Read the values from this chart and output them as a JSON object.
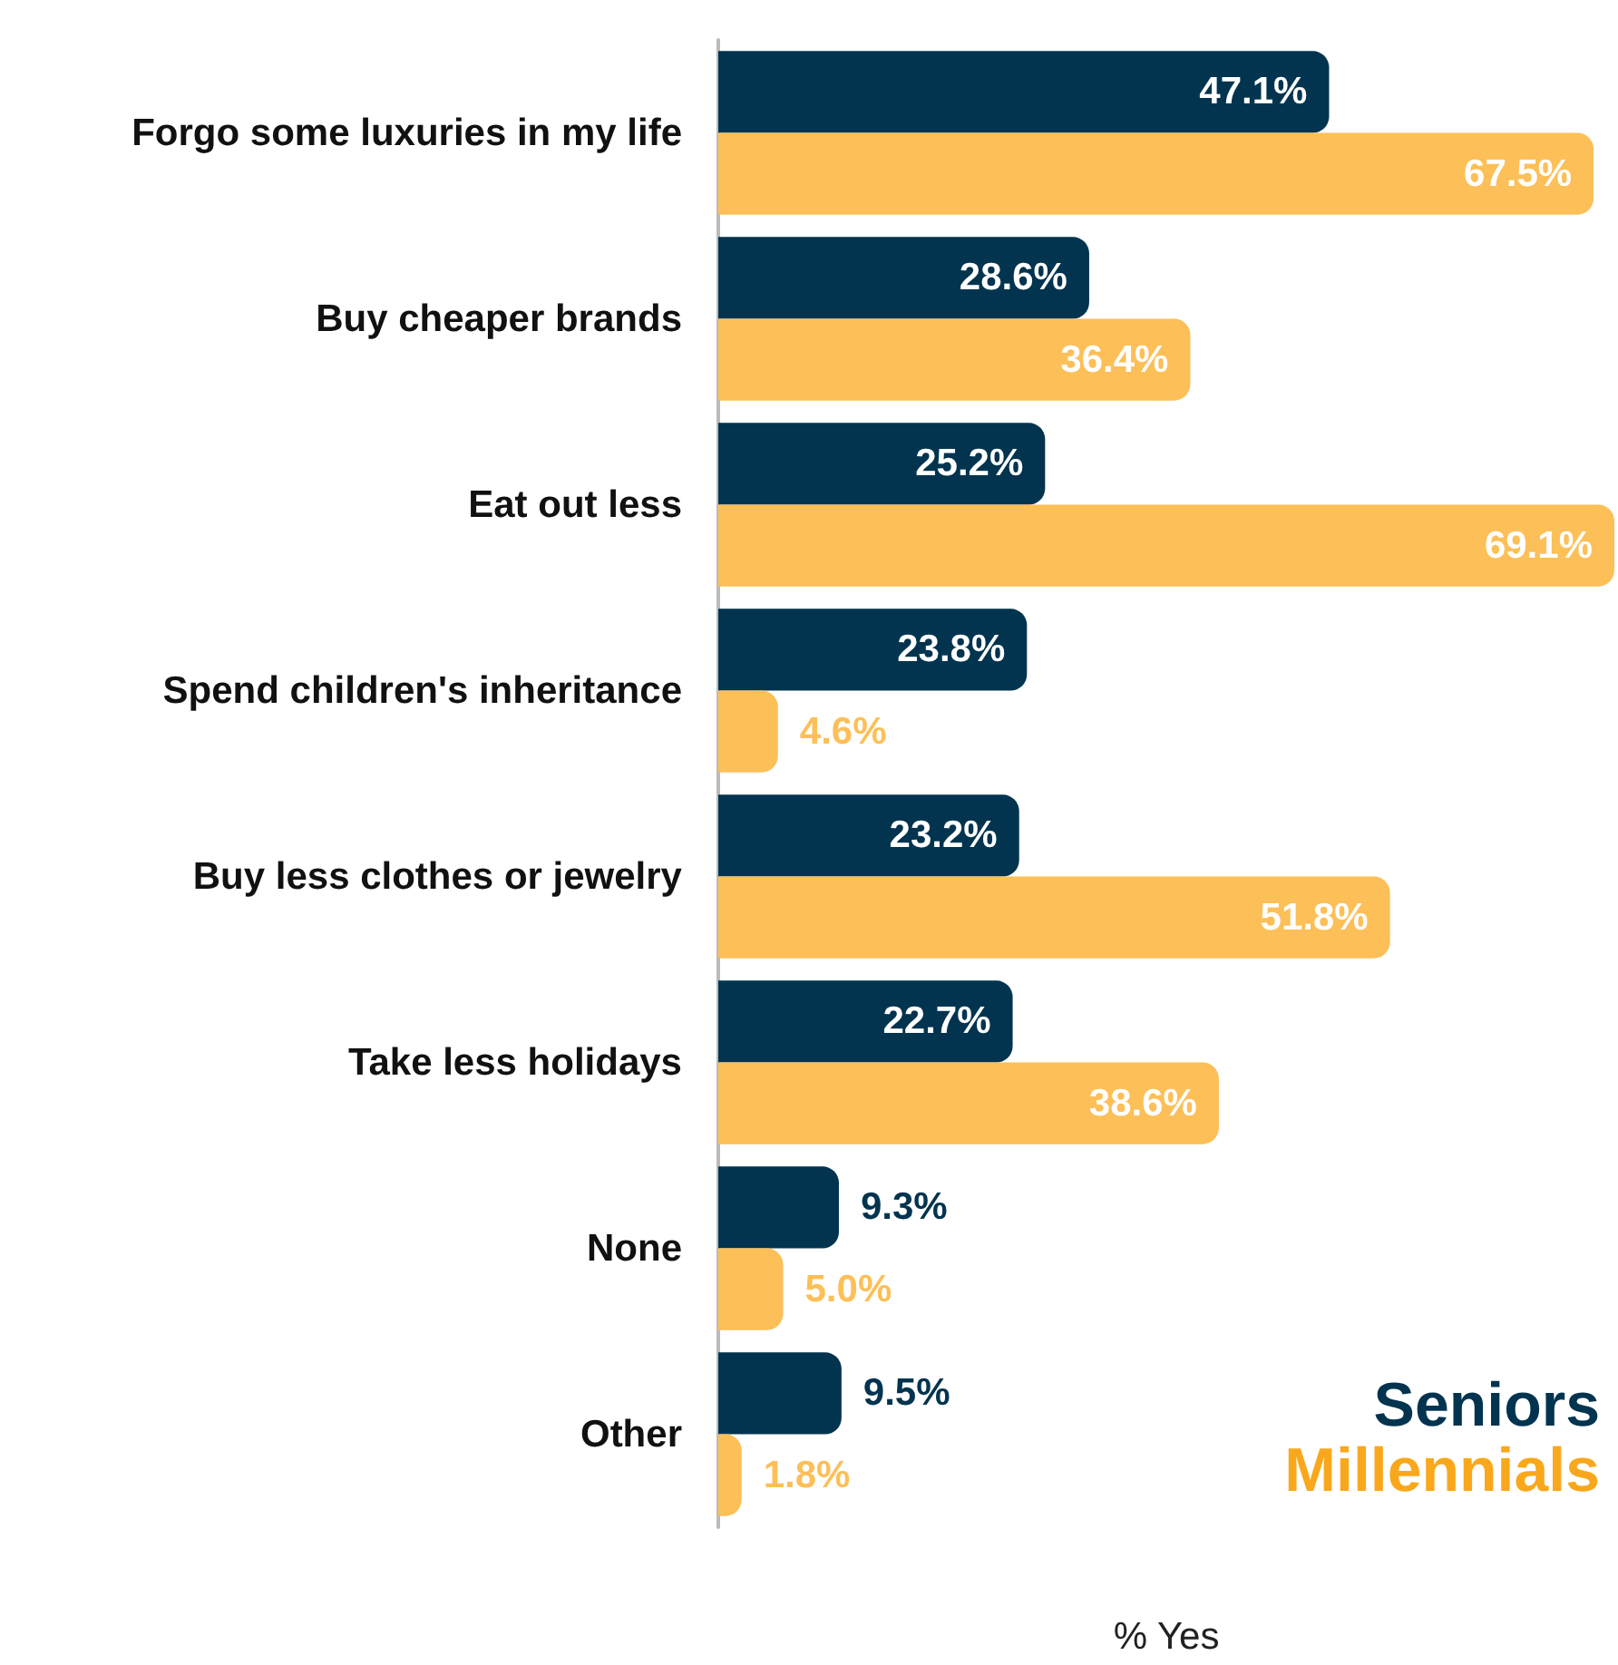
{
  "chart_data": {
    "type": "bar",
    "orientation": "horizontal",
    "xlabel": "% Yes",
    "categories": [
      "Forgo some luxuries in my life",
      "Buy cheaper brands",
      "Eat out less",
      "Spend children's inheritance",
      "Buy less clothes or jewelry",
      "Take less holidays",
      "None",
      "Other"
    ],
    "series": [
      {
        "name": "Seniors",
        "color": "#02344f",
        "values": [
          47.1,
          28.6,
          25.2,
          23.8,
          23.2,
          22.7,
          9.3,
          9.5
        ],
        "value_labels": [
          "47.1%",
          "28.6%",
          "25.2%",
          "23.8%",
          "23.2%",
          "22.7%",
          "9.3%",
          "9.5%"
        ]
      },
      {
        "name": "Millennials",
        "color": "#fdbf57",
        "values": [
          67.5,
          36.4,
          69.1,
          4.6,
          51.8,
          38.6,
          5.0,
          1.8
        ],
        "value_labels": [
          "67.5%",
          "36.4%",
          "69.1%",
          "4.6%",
          "51.8%",
          "38.6%",
          "5.0%",
          "1.8%"
        ]
      }
    ],
    "xlim": [
      0,
      69.1
    ],
    "tick_labels": "y",
    "grid": false,
    "legend": "bottom right"
  }
}
